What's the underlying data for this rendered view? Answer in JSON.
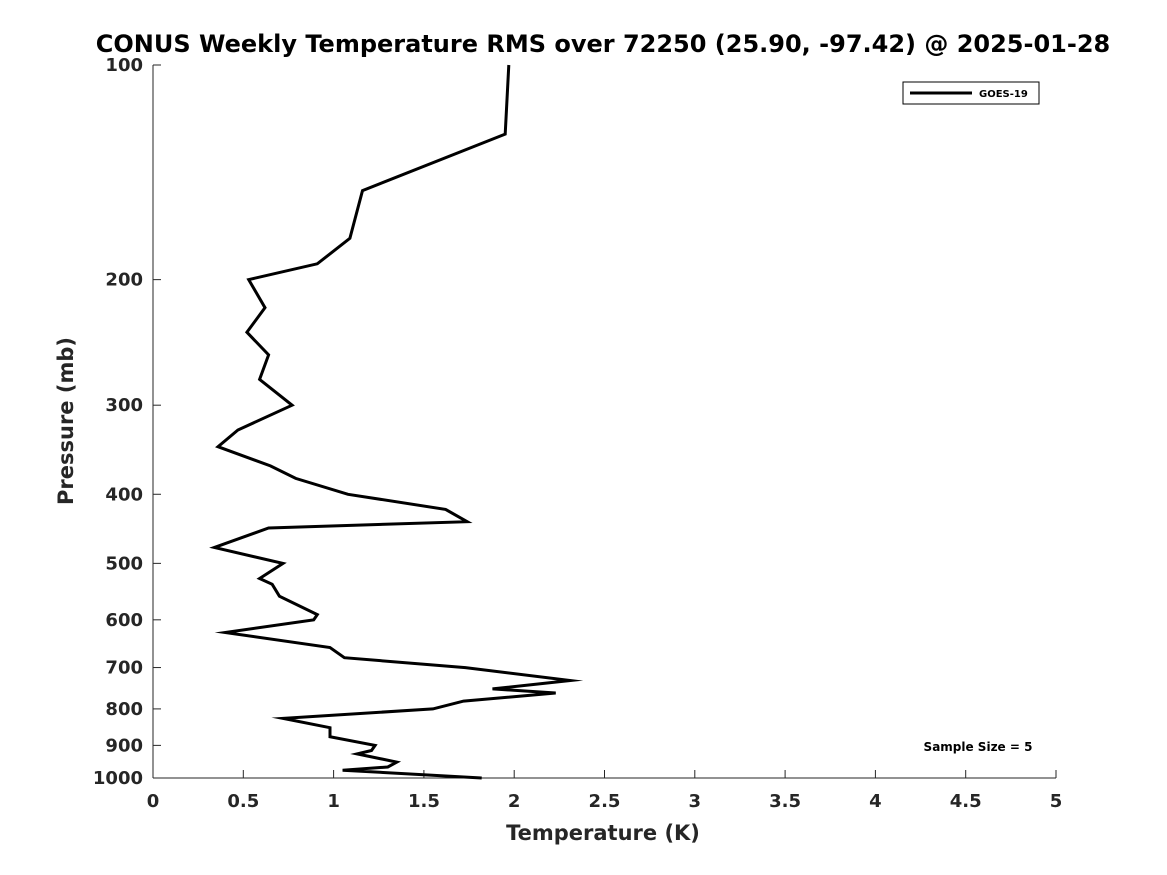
{
  "chart_data": {
    "type": "line",
    "title": "CONUS Weekly Temperature RMS over 72250 (25.90, -97.42) @ 2025-01-28",
    "xlabel": "Temperature (K)",
    "ylabel": "Pressure (mb)",
    "xlim": [
      0,
      5
    ],
    "ylim": [
      100,
      1000
    ],
    "y_scale": "log",
    "y_reversed": true,
    "x_ticks": [
      "0",
      "0.5",
      "1",
      "1.5",
      "2",
      "2.5",
      "3",
      "3.5",
      "4",
      "4.5",
      "5"
    ],
    "x_tick_values": [
      0,
      0.5,
      1,
      1.5,
      2,
      2.5,
      3,
      3.5,
      4,
      4.5,
      5
    ],
    "y_ticks": [
      "100",
      "200",
      "300",
      "400",
      "500",
      "600",
      "700",
      "800",
      "900",
      "1000"
    ],
    "y_tick_values": [
      100,
      200,
      300,
      400,
      500,
      600,
      700,
      800,
      900,
      1000
    ],
    "grid": false,
    "legend_position": "top-right",
    "annotation": "Sample Size = 5",
    "series": [
      {
        "name": "GOES-19",
        "color": "#000000",
        "points": [
          [
            1.97,
            100
          ],
          [
            1.95,
            125
          ],
          [
            1.16,
            150
          ],
          [
            1.09,
            175
          ],
          [
            0.91,
            190
          ],
          [
            0.53,
            200
          ],
          [
            0.62,
            219
          ],
          [
            0.52,
            237
          ],
          [
            0.64,
            255
          ],
          [
            0.59,
            276
          ],
          [
            0.77,
            300
          ],
          [
            0.47,
            325
          ],
          [
            0.36,
            343
          ],
          [
            0.65,
            365
          ],
          [
            0.79,
            380
          ],
          [
            1.08,
            400
          ],
          [
            1.62,
            420
          ],
          [
            1.74,
            437
          ],
          [
            0.64,
            446
          ],
          [
            0.34,
            475
          ],
          [
            0.72,
            500
          ],
          [
            0.59,
            525
          ],
          [
            0.66,
            535
          ],
          [
            0.7,
            556
          ],
          [
            0.91,
            590
          ],
          [
            0.89,
            600
          ],
          [
            0.4,
            625
          ],
          [
            0.98,
            656
          ],
          [
            1.06,
            678
          ],
          [
            1.73,
            700
          ],
          [
            2.31,
            730
          ],
          [
            1.88,
            750
          ],
          [
            2.23,
            760
          ],
          [
            1.72,
            780
          ],
          [
            1.55,
            800
          ],
          [
            0.72,
            825
          ],
          [
            0.98,
            850
          ],
          [
            0.98,
            875
          ],
          [
            1.23,
            900
          ],
          [
            1.21,
            915
          ],
          [
            1.13,
            925
          ],
          [
            1.35,
            950
          ],
          [
            1.3,
            965
          ],
          [
            1.05,
            975
          ],
          [
            1.82,
            1000
          ]
        ]
      }
    ]
  }
}
